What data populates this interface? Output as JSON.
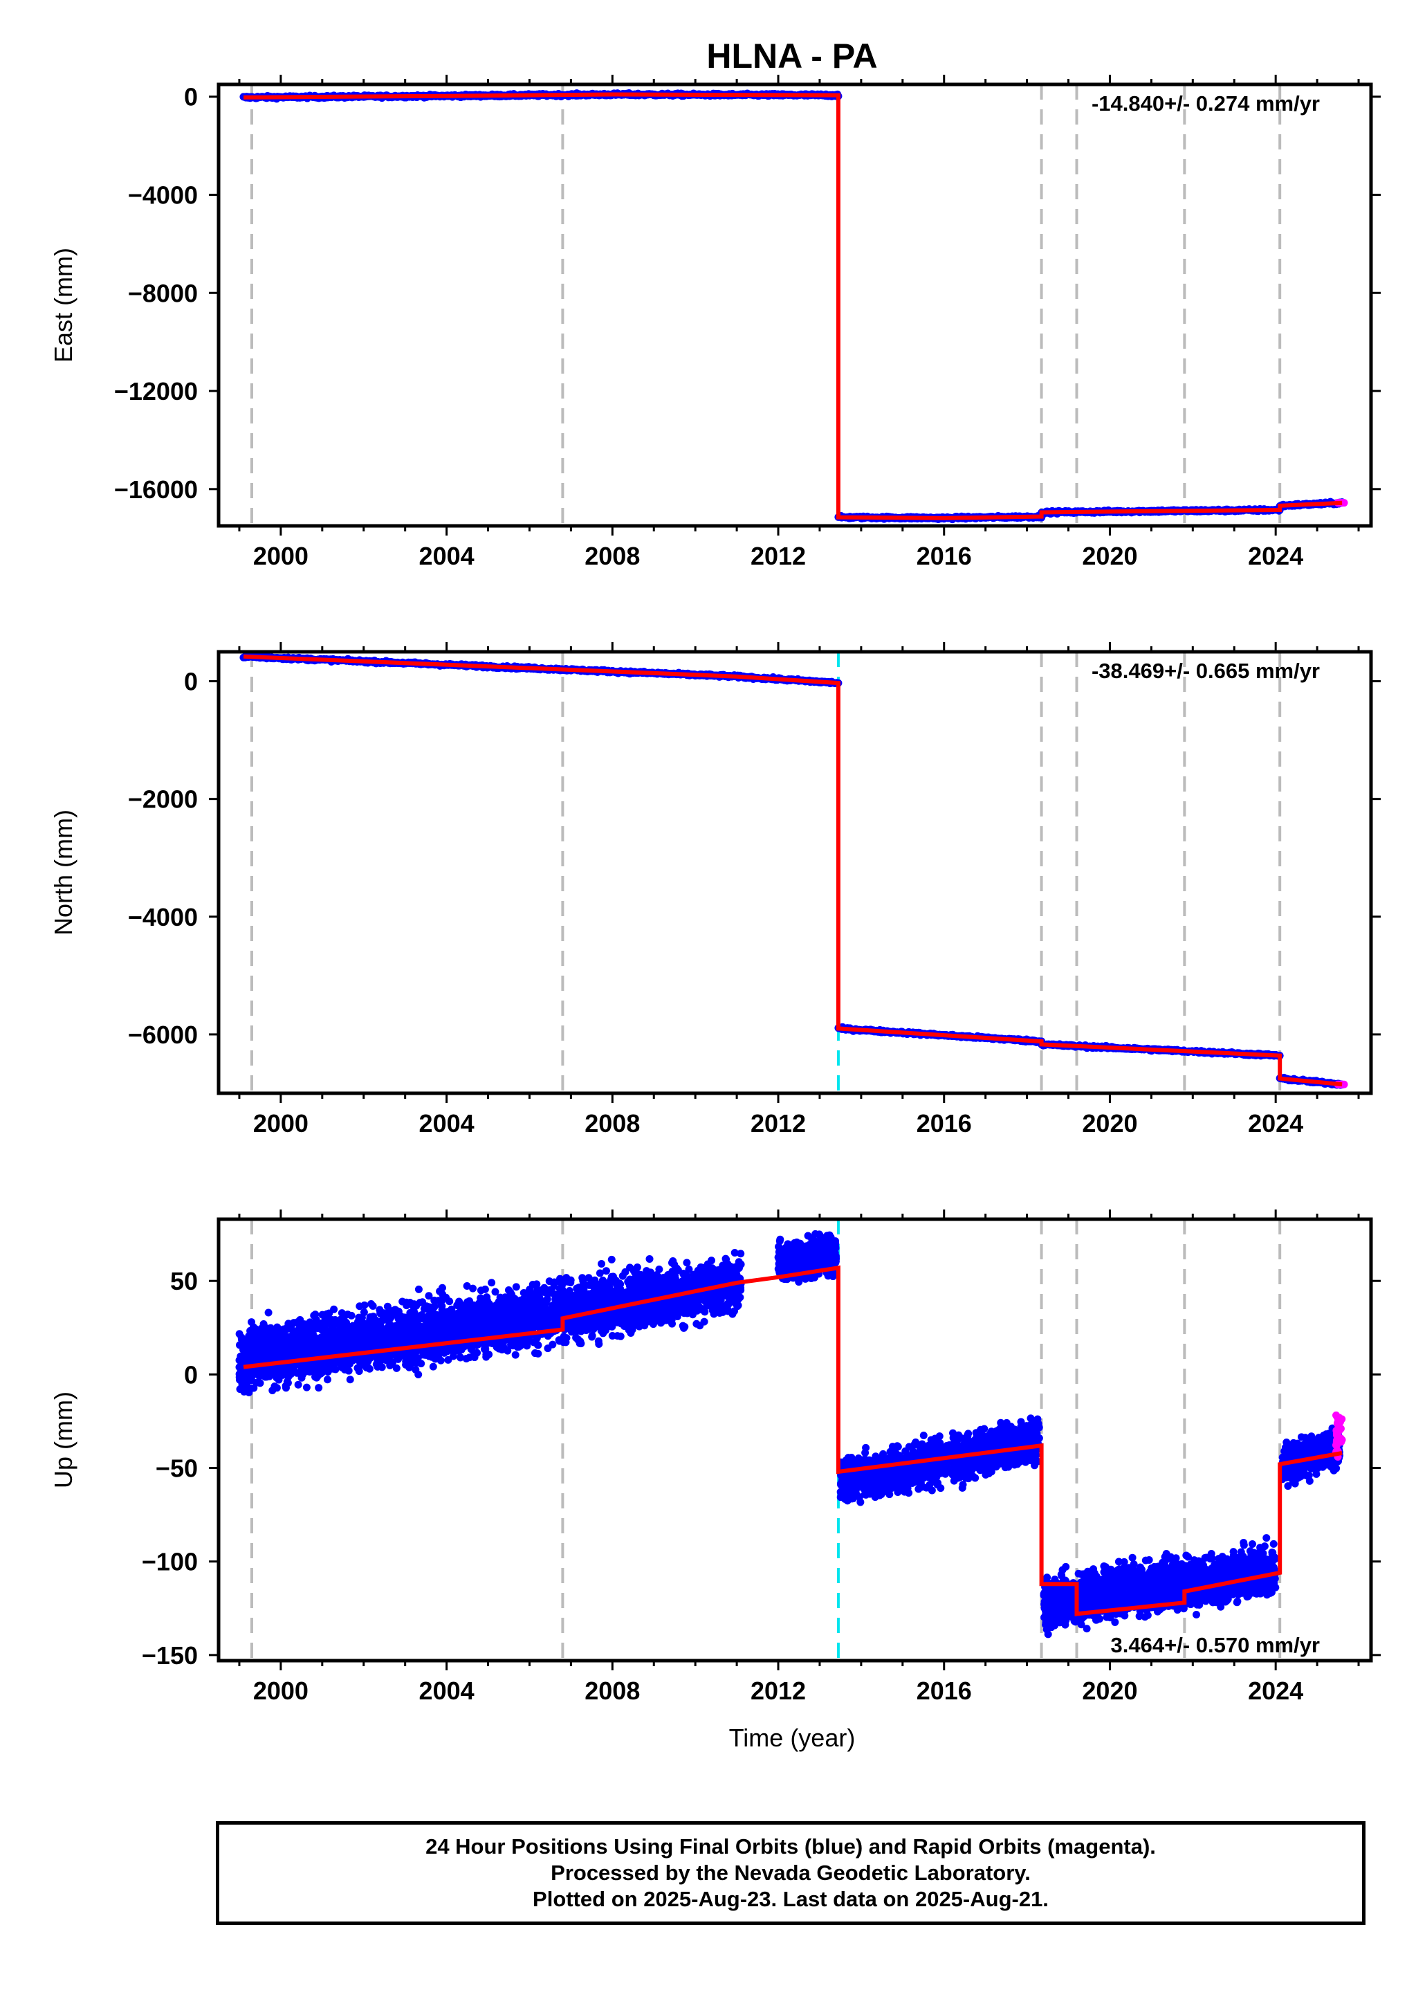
{
  "title": "HLNA - PA",
  "xlabel": "Time (year)",
  "colors": {
    "final": "#0000ff",
    "rapid": "#ff00ff",
    "model": "#ff0000",
    "event_gray": "#bbbbbb",
    "event_cyan": "#00e5ee"
  },
  "footer": {
    "line1": "24 Hour Positions Using Final Orbits (blue) and Rapid Orbits (magenta).",
    "line2": "Processed by the Nevada Geodetic Laboratory.",
    "line3": "Plotted on 2025-Aug-23. Last data on 2025-Aug-21."
  },
  "chart_data": [
    {
      "type": "scatter",
      "name": "east",
      "ylabel": "East (mm)",
      "rate": "-14.840+/- 0.274 mm/yr",
      "xlim": [
        1998.5,
        2026.3
      ],
      "ylim": [
        -17500,
        500
      ],
      "xticks": [
        2000,
        2004,
        2008,
        2012,
        2016,
        2020,
        2024
      ],
      "yticks": [
        0,
        -4000,
        -8000,
        -12000,
        -16000
      ],
      "ytick_labels": [
        "0",
        "−4000",
        "−8000",
        "−12000",
        "−16000"
      ],
      "event_lines": [
        {
          "x": 1999.3,
          "color": "gray"
        },
        {
          "x": 2006.8,
          "color": "gray"
        },
        {
          "x": 2018.35,
          "color": "gray"
        },
        {
          "x": 2019.2,
          "color": "gray"
        },
        {
          "x": 2021.8,
          "color": "gray"
        },
        {
          "x": 2024.1,
          "color": "gray"
        }
      ],
      "model": [
        [
          1999.1,
          -30
        ],
        [
          2004.0,
          30
        ],
        [
          2008.0,
          90
        ],
        [
          2013.45,
          60
        ],
        [
          2013.45,
          -17150
        ],
        [
          2016.0,
          -17180
        ],
        [
          2018.35,
          -17120
        ],
        [
          2018.35,
          -16950
        ],
        [
          2021.0,
          -16900
        ],
        [
          2024.1,
          -16850
        ],
        [
          2024.1,
          -16680
        ],
        [
          2025.6,
          -16560
        ]
      ]
    },
    {
      "type": "scatter",
      "name": "north",
      "ylabel": "North (mm)",
      "rate": "-38.469+/- 0.665 mm/yr",
      "xlim": [
        1998.5,
        2026.3
      ],
      "ylim": [
        -7000,
        500
      ],
      "xticks": [
        2000,
        2004,
        2008,
        2012,
        2016,
        2020,
        2024
      ],
      "yticks": [
        0,
        -2000,
        -4000,
        -6000
      ],
      "ytick_labels": [
        "0",
        "−2000",
        "−4000",
        "−6000"
      ],
      "event_lines": [
        {
          "x": 1999.3,
          "color": "gray"
        },
        {
          "x": 2006.8,
          "color": "gray"
        },
        {
          "x": 2013.45,
          "color": "cyan"
        },
        {
          "x": 2018.35,
          "color": "gray"
        },
        {
          "x": 2019.2,
          "color": "gray"
        },
        {
          "x": 2021.8,
          "color": "gray"
        },
        {
          "x": 2024.1,
          "color": "gray"
        }
      ],
      "model": [
        [
          1999.1,
          420
        ],
        [
          2006.8,
          200
        ],
        [
          2011.0,
          80
        ],
        [
          2013.45,
          -30
        ],
        [
          2013.45,
          -5900
        ],
        [
          2018.35,
          -6120
        ],
        [
          2018.35,
          -6170
        ],
        [
          2024.1,
          -6360
        ],
        [
          2024.1,
          -6750
        ],
        [
          2025.6,
          -6850
        ]
      ]
    },
    {
      "type": "scatter",
      "name": "up",
      "ylabel": "Up (mm)",
      "rate": "3.464+/- 0.570 mm/yr",
      "xlim": [
        1998.5,
        2026.3
      ],
      "ylim": [
        -153,
        83
      ],
      "xticks": [
        2000,
        2004,
        2008,
        2012,
        2016,
        2020,
        2024
      ],
      "yticks": [
        50,
        0,
        -50,
        -100,
        -150
      ],
      "ytick_labels": [
        "50",
        "0",
        "−50",
        "−100",
        "−150"
      ],
      "event_lines": [
        {
          "x": 1999.3,
          "color": "gray"
        },
        {
          "x": 2006.8,
          "color": "gray"
        },
        {
          "x": 2013.45,
          "color": "cyan"
        },
        {
          "x": 2018.35,
          "color": "gray"
        },
        {
          "x": 2019.2,
          "color": "gray"
        },
        {
          "x": 2021.8,
          "color": "gray"
        },
        {
          "x": 2024.1,
          "color": "gray"
        }
      ],
      "data_segments": [
        {
          "x0": 1999.0,
          "x1": 2011.1,
          "y0": 8,
          "y1": 48,
          "spread": 11
        },
        {
          "x0": 2012.0,
          "x1": 2013.4,
          "y0": 60,
          "y1": 65,
          "spread": 8
        },
        {
          "x0": 2013.5,
          "x1": 2018.3,
          "y0": -57,
          "y1": -35,
          "spread": 8
        },
        {
          "x0": 2018.4,
          "x1": 2024.0,
          "y0": -122,
          "y1": -105,
          "spread": 9
        },
        {
          "x0": 2024.15,
          "x1": 2025.55,
          "y0": -48,
          "y1": -38,
          "spread": 7
        }
      ],
      "rapid_segment": {
        "x0": 2025.45,
        "x1": 2025.6,
        "y0": -32,
        "y1": -30,
        "spread": 9
      },
      "model": [
        [
          1999.1,
          4
        ],
        [
          2006.8,
          24
        ],
        [
          2006.8,
          30
        ],
        [
          2011.0,
          49
        ],
        [
          2012.0,
          52
        ],
        [
          2013.45,
          57
        ],
        [
          2013.45,
          -52
        ],
        [
          2018.35,
          -38
        ],
        [
          2018.35,
          -112
        ],
        [
          2019.2,
          -112
        ],
        [
          2019.2,
          -128
        ],
        [
          2021.8,
          -122
        ],
        [
          2021.8,
          -116
        ],
        [
          2024.1,
          -106
        ],
        [
          2024.1,
          -48
        ],
        [
          2025.6,
          -42
        ]
      ]
    }
  ]
}
